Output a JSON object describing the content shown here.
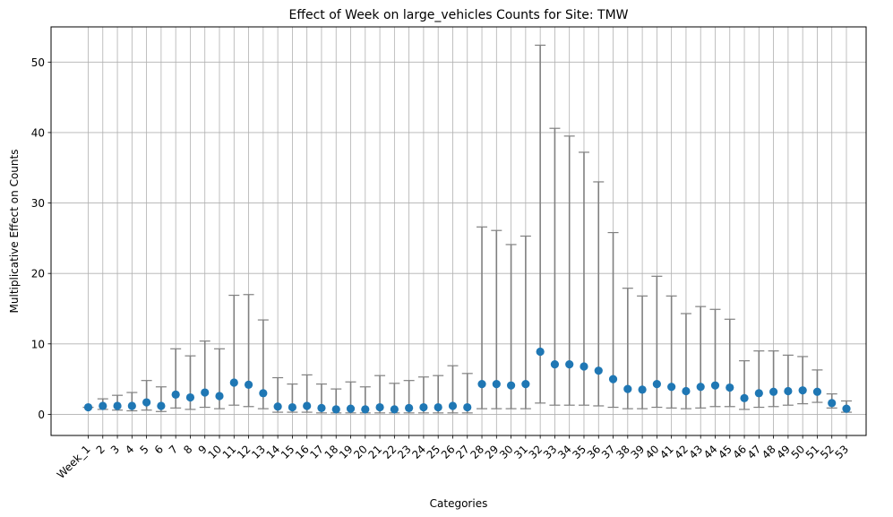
{
  "chart_data": {
    "type": "scatter",
    "title": "Effect of Week on large_vehicles Counts for Site: TMW",
    "xlabel": "Categories",
    "ylabel": "Multiplicative Effect on Counts",
    "ylim": [
      -3,
      55
    ],
    "yticks": [
      0,
      10,
      20,
      30,
      40,
      50
    ],
    "grid": true,
    "point_color": "#1f77b4",
    "errorbar_color": "#808080",
    "categories": [
      "Week_1",
      "2",
      "3",
      "4",
      "5",
      "6",
      "7",
      "8",
      "9",
      "10",
      "11",
      "12",
      "13",
      "14",
      "15",
      "16",
      "17",
      "18",
      "19",
      "20",
      "21",
      "22",
      "23",
      "24",
      "25",
      "26",
      "27",
      "28",
      "29",
      "30",
      "31",
      "32",
      "33",
      "34",
      "35",
      "36",
      "37",
      "38",
      "39",
      "40",
      "41",
      "42",
      "43",
      "44",
      "45",
      "46",
      "47",
      "48",
      "49",
      "50",
      "51",
      "52",
      "53"
    ],
    "values": [
      1.0,
      1.2,
      1.2,
      1.2,
      1.7,
      1.2,
      2.8,
      2.4,
      3.1,
      2.6,
      4.5,
      4.2,
      3.0,
      1.1,
      1.0,
      1.2,
      0.9,
      0.7,
      0.8,
      0.7,
      1.0,
      0.7,
      0.9,
      1.0,
      1.0,
      1.2,
      1.0,
      4.3,
      4.3,
      4.1,
      4.3,
      8.9,
      7.1,
      7.1,
      6.8,
      6.2,
      5.0,
      3.6,
      3.5,
      4.3,
      3.9,
      3.3,
      3.9,
      4.1,
      3.8,
      2.3,
      3.0,
      3.2,
      3.3,
      3.4,
      3.2,
      1.6,
      0.8
    ],
    "lower": [
      1.0,
      0.7,
      0.6,
      0.5,
      0.6,
      0.4,
      0.9,
      0.7,
      1.0,
      0.8,
      1.3,
      1.1,
      0.8,
      0.3,
      0.3,
      0.3,
      0.2,
      0.2,
      0.2,
      0.2,
      0.2,
      0.2,
      0.2,
      0.2,
      0.2,
      0.2,
      0.2,
      0.8,
      0.8,
      0.8,
      0.8,
      1.6,
      1.3,
      1.3,
      1.3,
      1.2,
      1.0,
      0.8,
      0.8,
      1.0,
      0.9,
      0.8,
      0.9,
      1.1,
      1.1,
      0.7,
      1.0,
      1.1,
      1.3,
      1.5,
      1.7,
      0.9,
      0.3
    ],
    "upper": [
      1.0,
      2.2,
      2.7,
      3.1,
      4.8,
      3.9,
      9.3,
      8.3,
      10.4,
      9.3,
      16.9,
      17.0,
      13.4,
      5.2,
      4.3,
      5.6,
      4.3,
      3.6,
      4.6,
      3.9,
      5.5,
      4.4,
      4.8,
      5.3,
      5.5,
      6.9,
      5.8,
      26.6,
      26.1,
      24.1,
      25.3,
      52.4,
      40.6,
      39.5,
      37.2,
      33.0,
      25.8,
      17.9,
      16.8,
      19.6,
      16.8,
      14.3,
      15.3,
      14.9,
      13.5,
      7.6,
      9.0,
      9.0,
      8.4,
      8.2,
      6.3,
      2.9,
      1.9
    ]
  }
}
